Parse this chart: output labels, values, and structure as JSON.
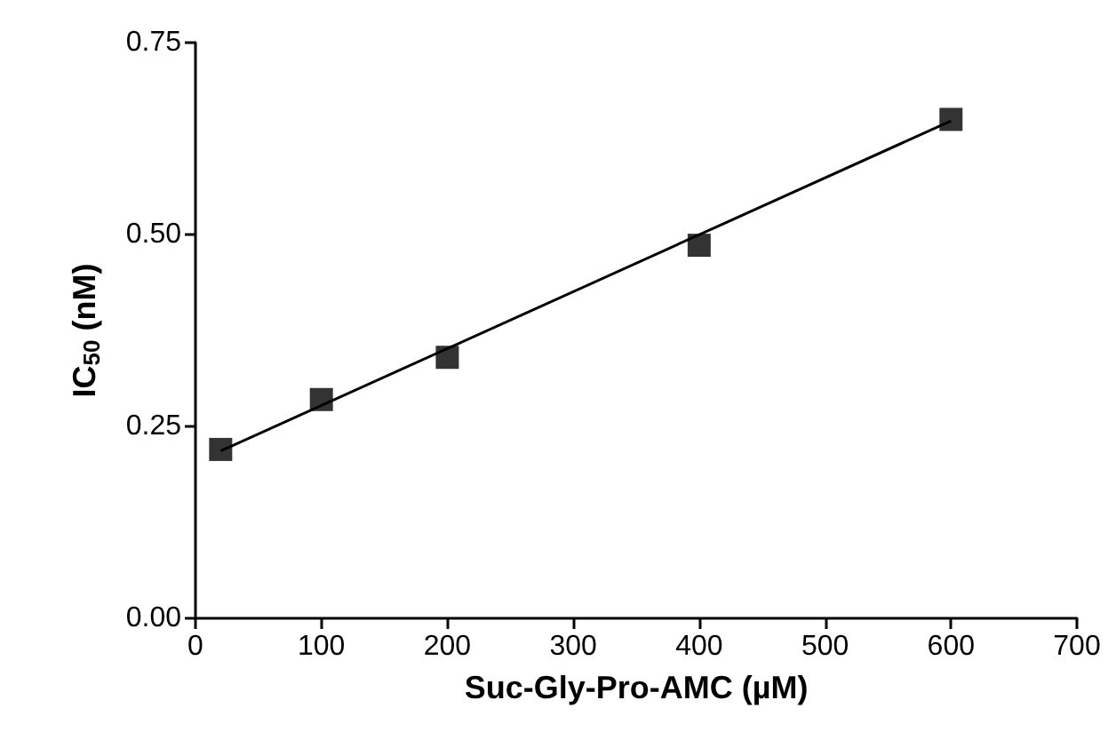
{
  "chart_data": {
    "type": "scatter",
    "xlabel": "Suc-Gly-Pro-AMC (µM)",
    "ylabel": "IC$_{50}$ (nM)",
    "xlim": [
      0,
      700
    ],
    "xticks": [
      0,
      100,
      200,
      300,
      400,
      500,
      600,
      700
    ],
    "ylim": [
      0,
      0.75
    ],
    "yticks": [
      {
        "value": 0,
        "label": "0.00"
      },
      {
        "value": 0.25,
        "label": "0.25"
      },
      {
        "value": 0.5,
        "label": "0.50"
      },
      {
        "value": 0.75,
        "label": "0.75"
      }
    ],
    "grid": false,
    "series": [
      {
        "color": "#000000",
        "marker": "square",
        "x": [
          20,
          100,
          200,
          400,
          600
        ],
        "values": [
          0.22,
          0.285,
          0.34,
          0.486,
          0.65
        ]
      },
      {
        "type": "line",
        "color": "#000000",
        "x": [
          20,
          600
        ],
        "values": [
          0.218,
          0.648
        ],
        "line_style": "solid",
        "marker": "none"
      }
    ]
  }
}
